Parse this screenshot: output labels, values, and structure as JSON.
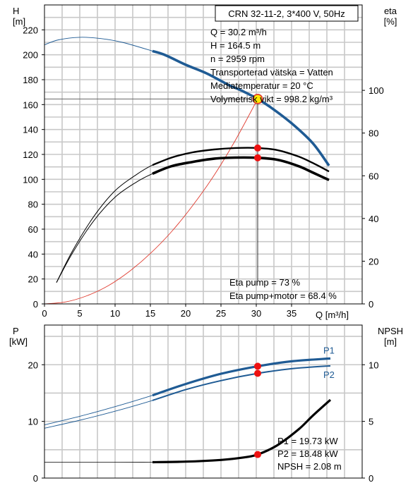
{
  "header": {
    "pump_title": "CRN 32-11-2, 3*400 V, 50Hz"
  },
  "info": {
    "lines": [
      "Q = 30.2 m³/h",
      "H = 164.5 m",
      "n = 2959 rpm",
      "Transporterad vätska = Vatten",
      "Mediatemperatur = 20 °C",
      "Volymetrisk vikt = 998.2 kg/m³"
    ],
    "eta_lines": [
      "Eta pump = 73 %",
      "Eta pump+motor = 68.4 %"
    ],
    "power_lines": [
      "P1 = 19.73 kW",
      "P2 = 18.48 kW",
      "NPSH = 2.08 m"
    ]
  },
  "chart_data": [
    {
      "type": "line",
      "title": "CRN 32-11-2, 3*400 V, 50Hz",
      "xlabel": "Q [m³/h]",
      "ylabel_left": "H\n[m]",
      "ylabel_right": "eta\n[%]",
      "xlim": [
        0,
        45
      ],
      "ylim_left": [
        0,
        240
      ],
      "ylim_right": [
        0,
        140
      ],
      "x_ticks": [
        0,
        5,
        10,
        15,
        20,
        25,
        30,
        35
      ],
      "y_ticks_left": [
        0,
        20,
        40,
        60,
        80,
        100,
        120,
        140,
        160,
        180,
        200,
        220
      ],
      "y_ticks_right": [
        0,
        20,
        40,
        60,
        80,
        100
      ],
      "grid": true,
      "operating_point": {
        "q": 30.2,
        "h": 164.5,
        "eta_pump": 73,
        "eta_pump_motor": 68.4
      },
      "series": [
        {
          "key": "H",
          "axis": "left",
          "color": "#1f5b94",
          "x": [
            0,
            2,
            5,
            8,
            11,
            15.3,
            17,
            20,
            23,
            26,
            28,
            30.2,
            32,
            35,
            38,
            40.3
          ],
          "y": [
            208,
            212,
            214,
            213,
            210,
            203,
            200,
            192,
            185,
            176,
            171,
            164.5,
            158,
            145,
            129,
            111
          ]
        },
        {
          "key": "system",
          "axis": "left",
          "color": "#e03c30",
          "x": [
            0,
            3,
            6,
            9,
            12,
            15,
            18,
            21,
            24,
            27,
            30.2
          ],
          "y": [
            0,
            1.6,
            6.5,
            14.5,
            26,
            40.5,
            58,
            79,
            103,
            131,
            164.5
          ]
        },
        {
          "key": "eta_pump",
          "axis": "right",
          "color": "#000000",
          "x": [
            1.7,
            4,
            7,
            10,
            13,
            15.3,
            18,
            21,
            24,
            27,
            30.2,
            33,
            36,
            38,
            40.3
          ],
          "y": [
            10,
            25,
            41,
            53,
            60.5,
            65,
            68.5,
            71,
            72.3,
            73,
            73,
            72,
            69,
            66,
            62
          ]
        },
        {
          "key": "eta_pump_motor",
          "axis": "right",
          "color": "#000000",
          "x": [
            1.7,
            4,
            7,
            10,
            13,
            15.3,
            18,
            21,
            24,
            27,
            30.2,
            33,
            36,
            38,
            40.3
          ],
          "y": [
            10,
            24,
            39,
            50,
            57,
            61,
            64.5,
            66.5,
            68,
            68.5,
            68.4,
            67.5,
            64.5,
            61.5,
            58
          ]
        }
      ]
    },
    {
      "type": "line",
      "ylabel_left": "P\n[kW]",
      "ylabel_right": "NPSH\n[m]",
      "xlim": [
        0,
        45
      ],
      "ylim_left": [
        0,
        27
      ],
      "ylim_right": [
        0,
        13.5
      ],
      "y_ticks_left": [
        0,
        10,
        20
      ],
      "y_ticks_right": [
        0,
        5,
        10
      ],
      "grid": true,
      "operating_point": {
        "q": 30.2,
        "p1": 19.73,
        "p2": 18.48,
        "npsh": 2.08
      },
      "series": [
        {
          "name": "P1",
          "key": "P1",
          "axis": "left",
          "color": "#1f5b94",
          "x": [
            0,
            5,
            10,
            15.3,
            20,
            25,
            30.2,
            35,
            40.5
          ],
          "y": [
            9.4,
            10.9,
            12.6,
            14.6,
            16.6,
            18.4,
            19.73,
            20.6,
            21.1
          ]
        },
        {
          "name": "P2",
          "key": "P2",
          "axis": "left",
          "color": "#1f5b94",
          "x": [
            0,
            5,
            10,
            15.3,
            20,
            25,
            30.2,
            35,
            40.5
          ],
          "y": [
            8.8,
            10.2,
            11.8,
            13.7,
            15.6,
            17.2,
            18.48,
            19.3,
            19.8
          ]
        },
        {
          "key": "NPSH",
          "axis": "right",
          "color": "#000000",
          "x": [
            0,
            10,
            15.3,
            20,
            25,
            28,
            30.2,
            33,
            36,
            38,
            40.5
          ],
          "y": [
            1.4,
            1.4,
            1.4,
            1.45,
            1.6,
            1.8,
            2.08,
            2.9,
            4.3,
            5.5,
            6.9
          ]
        }
      ]
    }
  ]
}
